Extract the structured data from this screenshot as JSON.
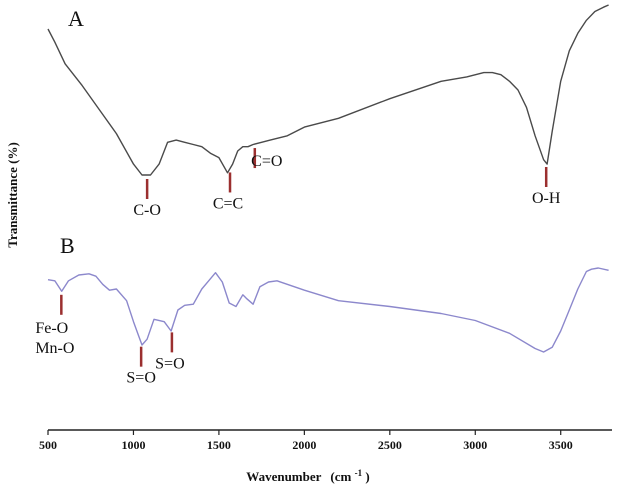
{
  "chart_data": {
    "type": "line",
    "xlabel": "Wavenumber",
    "xlabel_unit_base": "(cm",
    "xlabel_unit_sup": "-1",
    "xlabel_unit_close": ")",
    "ylabel": "Transmittance  (%)",
    "xlim": [
      500,
      3800
    ],
    "xticks": [
      "500",
      "1000",
      "1500",
      "2000",
      "2500",
      "3000",
      "3500"
    ],
    "series": [
      {
        "panel": "A",
        "color": "#4a4a4a",
        "x": [
          500,
          540,
          600,
          700,
          800,
          900,
          1000,
          1050,
          1100,
          1150,
          1200,
          1250,
          1300,
          1350,
          1400,
          1450,
          1500,
          1550,
          1580,
          1610,
          1640,
          1670,
          1700,
          1750,
          1800,
          1900,
          2000,
          2200,
          2500,
          2800,
          2950,
          3050,
          3100,
          3150,
          3200,
          3250,
          3300,
          3350,
          3400,
          3420,
          3450,
          3500,
          3550,
          3600,
          3650,
          3700,
          3750,
          3780
        ],
        "y": [
          102,
          96,
          86,
          76,
          65,
          54,
          40,
          35,
          35,
          40,
          50,
          51,
          50,
          49,
          48,
          45,
          43,
          36,
          40,
          46,
          48,
          48,
          49,
          50,
          51,
          53,
          57,
          61,
          70,
          78,
          80,
          82,
          82,
          81,
          78,
          74,
          66,
          53,
          42,
          40,
          55,
          78,
          92,
          100,
          106,
          110,
          112,
          113
        ]
      },
      {
        "panel": "B",
        "color": "#8c88cc",
        "x": [
          500,
          540,
          580,
          620,
          680,
          740,
          780,
          820,
          860,
          900,
          960,
          1000,
          1030,
          1050,
          1080,
          1120,
          1180,
          1220,
          1260,
          1300,
          1350,
          1400,
          1440,
          1480,
          1520,
          1560,
          1600,
          1640,
          1660,
          1700,
          1740,
          1790,
          1840,
          2000,
          2200,
          2500,
          2800,
          3000,
          3200,
          3350,
          3400,
          3450,
          3500,
          3550,
          3600,
          3650,
          3680,
          3720,
          3780
        ],
        "y": [
          96,
          95,
          86,
          95,
          100,
          101,
          99,
          92,
          87,
          88,
          78,
          60,
          48,
          40,
          45,
          62,
          60,
          52,
          70,
          74,
          75,
          88,
          95,
          102,
          94,
          76,
          73,
          83,
          80,
          75,
          90,
          94,
          95,
          87,
          78,
          73,
          67,
          61,
          50,
          37,
          34,
          38,
          52,
          70,
          88,
          103,
          105,
          106,
          104
        ]
      }
    ],
    "panel_labels": [
      "A",
      "B"
    ],
    "annotations": [
      {
        "panel": "A",
        "x": 1080,
        "lines": [
          "C-O"
        ]
      },
      {
        "panel": "A",
        "x": 1565,
        "lines": [
          "C=C"
        ]
      },
      {
        "panel": "A",
        "x": 1710,
        "lines": [
          "C=O"
        ]
      },
      {
        "panel": "A",
        "x": 3415,
        "lines": [
          "O-H"
        ]
      },
      {
        "panel": "B",
        "x": 578,
        "lines": [
          "Fe-O",
          "Mn-O"
        ]
      },
      {
        "panel": "B",
        "x": 1045,
        "lines": [
          "S=O"
        ]
      },
      {
        "panel": "B",
        "x": 1225,
        "lines": [
          "S=O"
        ]
      }
    ],
    "marker_color": "#9b2f2f",
    "grid": false
  }
}
